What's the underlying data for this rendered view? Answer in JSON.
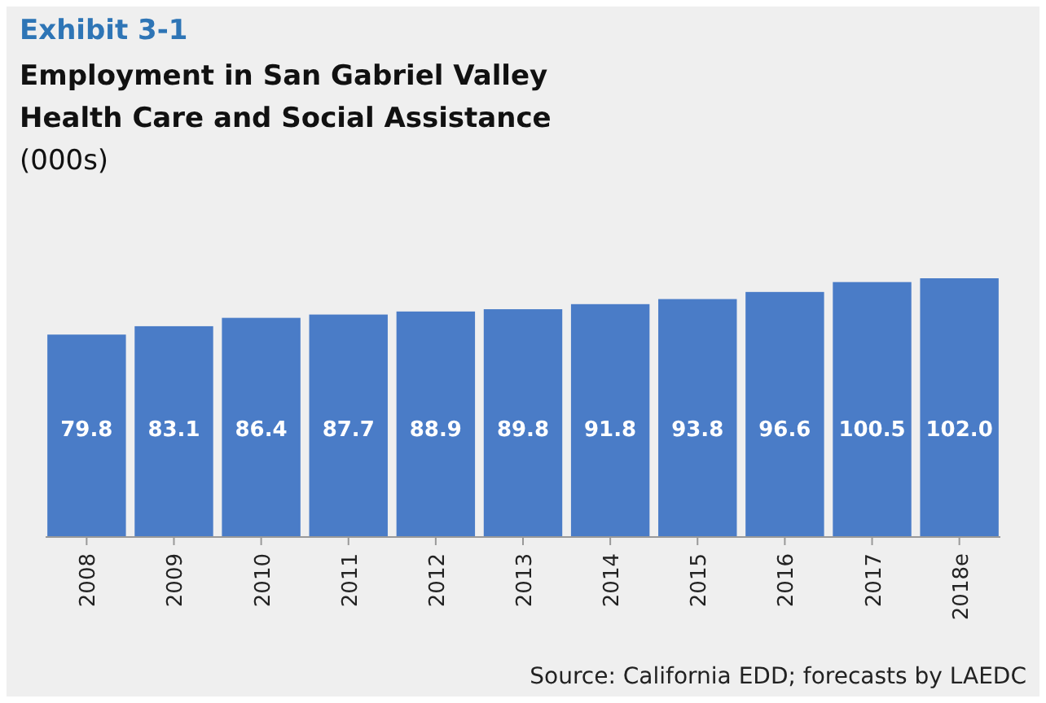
{
  "chart_data": {
    "type": "bar",
    "title": "Employment in San Gabriel Valley Health Care and Social Assistance",
    "subtitle": "(000s)",
    "categories": [
      "2008",
      "2009",
      "2010",
      "2011",
      "2012",
      "2013",
      "2014",
      "2015",
      "2016",
      "2017",
      "2018e"
    ],
    "values": [
      79.8,
      83.1,
      86.4,
      87.7,
      88.9,
      89.8,
      91.8,
      93.8,
      96.6,
      100.5,
      102.0
    ],
    "value_labels": [
      "79.8",
      "83.1",
      "86.4",
      "87.7",
      "88.9",
      "89.8",
      "91.8",
      "93.8",
      "96.6",
      "100.5",
      "102.0"
    ],
    "color": "#4a7cc7",
    "annotations": [
      "Exhibit 3-1",
      "Source: California EDD; forecasts by LAEDC"
    ]
  }
}
